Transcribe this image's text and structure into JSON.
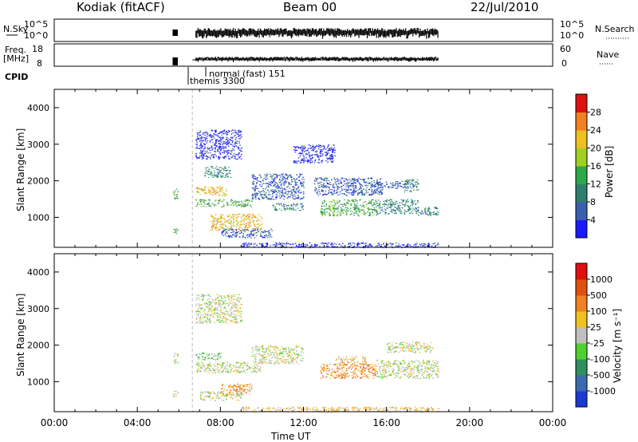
{
  "header": {
    "station": "Kodiak (fitACF)",
    "beam": "Beam 00",
    "date": "22/Jul/2010"
  },
  "noise_panel": {
    "left_label": "N.Sky",
    "right_label": "N.Search",
    "left_ticks": [
      "10^5",
      "10^0"
    ],
    "right_ticks": [
      "10^5",
      "10^0"
    ]
  },
  "freq_panel": {
    "left_label_line1": "Freq.",
    "left_label_line2": "[MHz]",
    "left_ticks": [
      "18",
      "8"
    ],
    "right_ticks": [
      "60",
      "0"
    ],
    "right_label": "Nave"
  },
  "cpid": {
    "label": "CPID",
    "modes": [
      {
        "name": "themis 3300",
        "start_hour": 5.75
      },
      {
        "name": "normal (fast) 151",
        "start_hour": 6.65
      }
    ]
  },
  "chart_data": [
    {
      "type": "heatmap",
      "name": "power",
      "title": "",
      "ylabel": "Slant Range [km]",
      "xlabel": "",
      "xlim": [
        0,
        24
      ],
      "ylim": [
        180,
        4500
      ],
      "yticks": [
        1000,
        2000,
        3000,
        4000
      ],
      "colorbar": {
        "label": "Power [dB]",
        "ticks": [
          "4",
          "8",
          "12",
          "16",
          "20",
          "24",
          "28"
        ],
        "colors": [
          "#1a1aff",
          "#3a5fb0",
          "#2e7f6e",
          "#2ea84a",
          "#a0d020",
          "#f0c020",
          "#f08020",
          "#e01010"
        ]
      },
      "regions": [
        {
          "x": [
            5.7,
            5.95
          ],
          "y": [
            1500,
            1800
          ],
          "level": 3
        },
        {
          "x": [
            5.7,
            5.95
          ],
          "y": [
            560,
            760
          ],
          "level": 3
        },
        {
          "x": [
            6.8,
            9.5
          ],
          "y": [
            1300,
            1500
          ],
          "level": 3
        },
        {
          "x": [
            6.8,
            8.3
          ],
          "y": [
            1600,
            1850
          ],
          "level": 5
        },
        {
          "x": [
            7.5,
            10.0
          ],
          "y": [
            650,
            1100
          ],
          "level": 5
        },
        {
          "x": [
            7.2,
            8.5
          ],
          "y": [
            2100,
            2400
          ],
          "level": 2
        },
        {
          "x": [
            8.0,
            10.5
          ],
          "y": [
            450,
            700
          ],
          "level": 1
        },
        {
          "x": [
            9.5,
            12.0
          ],
          "y": [
            1500,
            2200
          ],
          "level": 1
        },
        {
          "x": [
            10.5,
            12.0
          ],
          "y": [
            1200,
            1400
          ],
          "level": 2
        },
        {
          "x": [
            12.8,
            15.5
          ],
          "y": [
            1050,
            1500
          ],
          "level": 3
        },
        {
          "x": [
            12.5,
            15.8
          ],
          "y": [
            1600,
            2100
          ],
          "level": 1
        },
        {
          "x": [
            15.5,
            17.5
          ],
          "y": [
            1100,
            1500
          ],
          "level": 2
        },
        {
          "x": [
            17.5,
            18.5
          ],
          "y": [
            1050,
            1300
          ],
          "level": 2
        },
        {
          "x": [
            15.5,
            17.0
          ],
          "y": [
            1800,
            2000
          ],
          "level": 1
        },
        {
          "x": [
            16.8,
            17.5
          ],
          "y": [
            1700,
            2050
          ],
          "level": 2
        },
        {
          "x": [
            6.8,
            9.0
          ],
          "y": [
            2600,
            3400
          ],
          "level": 0
        },
        {
          "x": [
            11.5,
            13.5
          ],
          "y": [
            2500,
            3000
          ],
          "level": 0
        },
        {
          "x": [
            9.0,
            18.5
          ],
          "y": [
            180,
            320
          ],
          "level": 0
        }
      ]
    },
    {
      "type": "heatmap",
      "name": "velocity",
      "title": "",
      "ylabel": "Slant Range [km]",
      "xlabel": "Time UT",
      "xlim": [
        0,
        24
      ],
      "ylim": [
        180,
        4500
      ],
      "yticks": [
        1000,
        2000,
        3000,
        4000
      ],
      "xticks": [
        "00:00",
        "04:00",
        "08:00",
        "12:00",
        "16:00",
        "20:00",
        "00:00"
      ],
      "colorbar": {
        "label": "Velocity [m s⁻¹]",
        "ticks": [
          "1000",
          "500",
          "100",
          "25",
          "-25",
          "-100",
          "-500",
          "-1000"
        ],
        "colors": [
          "#1a3ad0",
          "#3a6ab0",
          "#2e8f5e",
          "#50d030",
          "#c0c0c0",
          "#f0c020",
          "#f08020",
          "#e05010",
          "#e01010"
        ]
      },
      "regions": [
        {
          "x": [
            5.7,
            5.95
          ],
          "y": [
            1500,
            1800
          ],
          "level": 4
        },
        {
          "x": [
            5.7,
            5.95
          ],
          "y": [
            560,
            760
          ],
          "level": 4
        },
        {
          "x": [
            6.8,
            10.0
          ],
          "y": [
            1250,
            1550
          ],
          "level": 4
        },
        {
          "x": [
            6.8,
            8.0
          ],
          "y": [
            1600,
            1800
          ],
          "level": 3
        },
        {
          "x": [
            8.0,
            9.5
          ],
          "y": [
            650,
            950
          ],
          "level": 6
        },
        {
          "x": [
            7.0,
            9.0
          ],
          "y": [
            500,
            750
          ],
          "level": 4
        },
        {
          "x": [
            9.5,
            12.0
          ],
          "y": [
            1500,
            2000
          ],
          "level": 4
        },
        {
          "x": [
            12.8,
            15.5
          ],
          "y": [
            1100,
            1500
          ],
          "level": 6
        },
        {
          "x": [
            13.5,
            15.0
          ],
          "y": [
            1500,
            1700
          ],
          "level": 5
        },
        {
          "x": [
            15.5,
            18.5
          ],
          "y": [
            1100,
            1600
          ],
          "level": 4
        },
        {
          "x": [
            16.0,
            18.2
          ],
          "y": [
            1800,
            2100
          ],
          "level": 4
        },
        {
          "x": [
            6.8,
            9.0
          ],
          "y": [
            2600,
            3400
          ],
          "level": 4
        },
        {
          "x": [
            9.0,
            18.5
          ],
          "y": [
            180,
            320
          ],
          "level": 5
        }
      ]
    }
  ]
}
